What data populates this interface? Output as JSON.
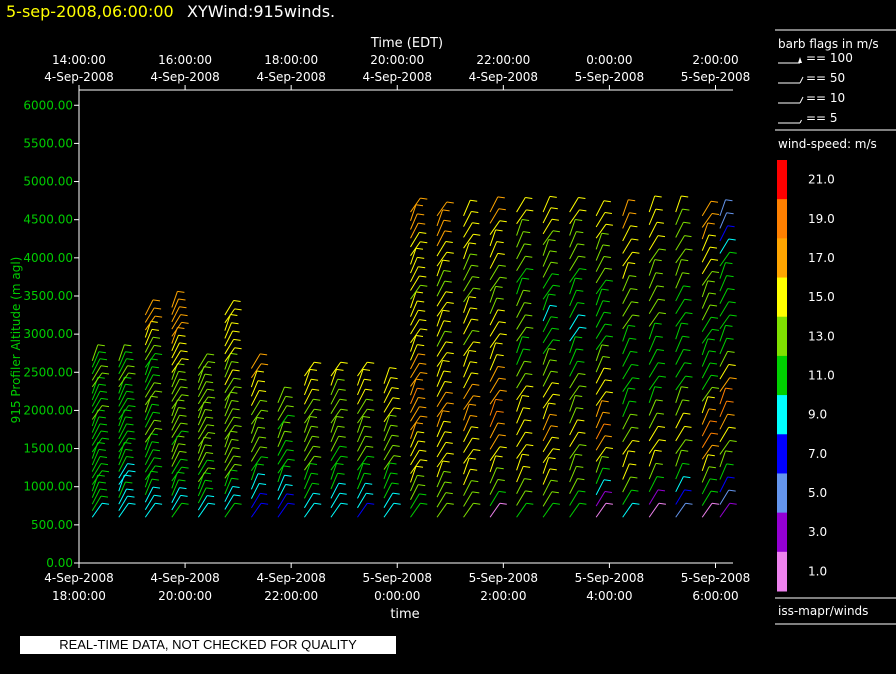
{
  "header": {
    "datetime": "5-sep-2008,06:00:00",
    "product": "XYWind:915winds."
  },
  "top_axis": {
    "label": "Time (EDT)",
    "ticks": [
      {
        "time": "14:00:00",
        "date": "4-Sep-2008"
      },
      {
        "time": "16:00:00",
        "date": "4-Sep-2008"
      },
      {
        "time": "18:00:00",
        "date": "4-Sep-2008"
      },
      {
        "time": "20:00:00",
        "date": "4-Sep-2008"
      },
      {
        "time": "22:00:00",
        "date": "4-Sep-2008"
      },
      {
        "time": "0:00:00",
        "date": "5-Sep-2008"
      },
      {
        "time": "2:00:00",
        "date": "5-Sep-2008"
      }
    ]
  },
  "barb_legend": {
    "title": "barb flags in m/s",
    "items": [
      "== 100",
      "== 50",
      "== 10",
      "== 5"
    ]
  },
  "colorbar": {
    "title": "wind-speed: m/s",
    "levels": [
      {
        "label": "21.0",
        "color": "#ff0000"
      },
      {
        "label": "19.0",
        "color": "#ff8000"
      },
      {
        "label": "17.0",
        "color": "#ffa500"
      },
      {
        "label": "15.0",
        "color": "#ffff00"
      },
      {
        "label": "13.0",
        "color": "#80e000"
      },
      {
        "label": "11.0",
        "color": "#00d000"
      },
      {
        "label": "9.0",
        "color": "#00ffff"
      },
      {
        "label": "7.0",
        "color": "#0000ff"
      },
      {
        "label": "5.0",
        "color": "#6495ed"
      },
      {
        "label": "3.0",
        "color": "#9400d3"
      },
      {
        "label": "1.0",
        "color": "#ee82ee"
      }
    ],
    "source": "iss-mapr/winds"
  },
  "footer_note": "REAL-TIME DATA, NOT CHECKED FOR QUALITY",
  "chart_data": {
    "type": "scatter",
    "mark": "wind-barb",
    "ylabel": "915 Profiler Altitude (m agl)",
    "xlabel": "time",
    "ylim": [
      0,
      6200
    ],
    "yticks": [
      "0.00",
      "500.00",
      "1000.00",
      "1500.00",
      "2000.00",
      "2500.00",
      "3000.00",
      "3500.00",
      "4000.00",
      "4500.00",
      "5000.00",
      "5500.00",
      "6000.00"
    ],
    "xlim_hours_utc": [
      "4-Sep-2008 18:00",
      "5-Sep-2008 06:10"
    ],
    "xticks": [
      {
        "date": "4-Sep-2008",
        "time": "18:00:00"
      },
      {
        "date": "4-Sep-2008",
        "time": "20:00:00"
      },
      {
        "date": "4-Sep-2008",
        "time": "22:00:00"
      },
      {
        "date": "5-Sep-2008",
        "time": "0:00:00"
      },
      {
        "date": "5-Sep-2008",
        "time": "2:00:00"
      },
      {
        "date": "5-Sep-2008",
        "time": "4:00:00"
      },
      {
        "date": "5-Sep-2008",
        "time": "6:00:00"
      }
    ],
    "profiles": [
      {
        "time": "18:15",
        "top": 2650,
        "speeds": [
          10,
          11,
          11,
          12,
          11,
          12,
          12,
          12,
          11,
          11,
          11,
          12,
          12,
          12,
          12,
          13,
          12,
          12,
          11,
          12,
          13,
          13,
          12,
          12,
          13
        ]
      },
      {
        "time": "18:45",
        "top": 2650,
        "speeds": [
          9,
          9,
          10,
          11,
          9,
          9,
          10,
          11,
          11,
          11,
          12,
          12,
          11,
          12,
          12,
          12,
          12,
          12,
          11,
          12,
          13,
          13,
          12,
          12,
          13
        ]
      },
      {
        "time": "19:15",
        "top": 3250,
        "speeds": [
          10,
          9,
          10,
          11,
          11,
          12,
          12,
          11,
          12,
          12,
          13,
          13,
          12,
          12,
          13,
          13,
          13,
          12,
          12,
          12,
          12,
          13,
          14,
          15,
          15,
          17,
          17,
          18
        ]
      },
      {
        "time": "19:45",
        "top": 3350,
        "speeds": [
          11,
          9,
          10,
          11,
          11,
          12,
          12,
          13,
          13,
          13,
          12,
          13,
          13,
          14,
          14,
          14,
          13,
          13,
          13,
          14,
          15,
          15,
          16,
          16,
          17,
          17,
          17,
          17,
          17,
          17
        ]
      },
      {
        "time": "20:15",
        "top": 2550,
        "speeds": [
          9,
          9,
          11,
          11,
          12,
          13,
          12,
          13,
          13,
          14,
          13,
          14,
          14,
          14,
          13,
          13,
          13,
          14,
          13,
          14,
          14,
          14
        ]
      },
      {
        "time": "20:45",
        "top": 3250,
        "speeds": [
          11,
          9,
          10,
          11,
          12,
          13,
          13,
          13,
          13,
          14,
          14,
          14,
          14,
          14,
          14,
          14,
          14,
          15,
          14,
          14,
          15,
          15,
          15,
          15,
          16,
          16,
          16
        ]
      },
      {
        "time": "21:15",
        "top": 2550,
        "speeds": [
          8,
          7,
          9,
          10,
          11,
          11,
          13,
          13,
          13,
          14,
          14,
          14,
          15,
          15,
          15,
          17,
          17
        ]
      },
      {
        "time": "21:45",
        "top": 2100,
        "speeds": [
          8,
          8,
          9,
          10,
          11,
          12,
          12,
          12,
          13,
          13,
          12,
          13,
          14,
          14
        ]
      },
      {
        "time": "22:15",
        "top": 2450,
        "speeds": [
          9,
          9,
          11,
          11,
          12,
          13,
          13,
          13,
          14,
          14,
          14,
          14,
          15,
          15,
          15,
          15
        ]
      },
      {
        "time": "22:45",
        "top": 2450,
        "speeds": [
          9,
          9,
          10,
          11,
          11,
          12,
          12,
          13,
          13,
          14,
          14,
          14,
          14,
          14,
          15,
          15
        ]
      },
      {
        "time": "23:15",
        "top": 2450,
        "speeds": [
          8,
          9,
          10,
          11,
          12,
          12,
          13,
          13,
          14,
          14,
          14,
          14,
          15,
          15,
          15,
          15
        ]
      },
      {
        "time": "23:45",
        "top": 2350,
        "speeds": [
          9,
          9,
          11,
          11,
          12,
          13,
          13,
          13,
          14,
          14,
          15,
          15,
          15,
          16,
          15
        ]
      },
      {
        "time": "0:15",
        "top": 4600,
        "speeds": [
          12,
          12,
          13,
          14,
          15,
          15,
          15,
          16,
          16,
          17,
          17,
          18,
          18,
          19,
          18,
          18,
          17,
          17,
          16,
          16,
          15,
          15,
          15,
          15,
          15,
          14,
          15,
          15,
          15,
          15,
          16,
          16,
          17,
          17,
          17,
          17
        ]
      },
      {
        "time": "0:45",
        "top": 4550,
        "speeds": [
          13,
          13,
          13,
          14,
          15,
          15,
          16,
          16,
          16,
          17,
          17,
          17,
          16,
          16,
          15,
          15,
          15,
          14,
          15,
          15,
          15,
          15,
          14,
          14,
          15,
          16,
          16,
          17,
          17,
          17,
          17
        ]
      },
      {
        "time": "1:15",
        "top": 4550,
        "speeds": [
          13,
          14,
          14,
          15,
          15,
          15,
          16,
          16,
          17,
          17,
          17,
          17,
          16,
          16,
          15,
          15,
          14,
          15,
          15,
          15,
          14,
          14,
          14,
          14,
          15,
          15,
          16,
          16,
          16
        ]
      },
      {
        "time": "1:45",
        "top": 4600,
        "speeds": [
          2,
          11,
          13,
          14,
          15,
          16,
          17,
          18,
          19,
          19,
          18,
          18,
          17,
          16,
          16,
          15,
          15,
          15,
          14,
          13,
          13,
          14,
          15,
          15,
          16,
          16,
          17,
          17
        ]
      },
      {
        "time": "2:15",
        "top": 4600,
        "speeds": [
          12,
          13,
          14,
          15,
          15,
          16,
          16,
          16,
          15,
          15,
          15,
          14,
          13,
          12,
          12,
          13,
          13,
          13,
          13,
          12,
          12,
          13,
          13,
          14,
          14,
          15,
          15
        ]
      },
      {
        "time": "2:45",
        "top": 4600,
        "speeds": [
          12,
          13,
          14,
          15,
          15,
          16,
          16,
          17,
          17,
          16,
          16,
          15,
          14,
          13,
          13,
          12,
          12,
          11,
          10,
          11,
          12,
          12,
          13,
          13,
          14,
          14,
          15,
          15,
          15
        ]
      },
      {
        "time": "3:15",
        "top": 4600,
        "speeds": [
          11,
          12,
          13,
          13,
          14,
          14,
          15,
          15,
          14,
          14,
          13,
          13,
          12,
          12,
          11,
          10,
          10,
          11,
          11,
          12,
          12,
          13,
          13,
          14,
          14,
          15,
          15
        ]
      },
      {
        "time": "3:45",
        "top": 4550,
        "speeds": [
          1,
          3,
          9,
          11,
          13,
          15,
          17,
          19,
          18,
          17,
          16,
          15,
          15,
          14,
          13,
          12,
          11,
          11,
          11,
          12,
          12,
          13,
          13,
          14,
          14,
          15,
          15,
          16
        ]
      },
      {
        "time": "4:15",
        "top": 4550,
        "speeds": [
          9,
          11,
          13,
          15,
          16,
          15,
          14,
          13,
          12,
          12,
          11,
          11,
          11,
          12,
          12,
          13,
          13,
          14,
          14,
          15,
          15,
          16,
          16,
          17,
          17
        ]
      },
      {
        "time": "4:45",
        "top": 4600,
        "speeds": [
          1,
          3,
          11,
          13,
          15,
          16,
          15,
          14,
          13,
          12,
          12,
          11,
          11,
          11,
          12,
          13,
          13,
          13,
          14,
          14,
          14,
          15,
          15,
          16,
          16
        ]
      },
      {
        "time": "5:15",
        "top": 4600,
        "speeds": [
          5,
          7,
          9,
          11,
          13,
          14,
          15,
          15,
          14,
          13,
          12,
          12,
          11,
          11,
          11,
          12,
          12,
          12,
          13,
          13,
          13,
          14,
          14,
          14,
          15
        ]
      },
      {
        "time": "5:45",
        "top": 4550,
        "speeds": [
          2,
          11,
          12,
          13,
          15,
          17,
          19,
          19,
          17,
          15,
          13,
          12,
          11,
          11,
          12,
          12,
          12,
          13,
          13,
          14,
          14,
          15,
          15,
          16,
          17,
          17,
          18
        ]
      },
      {
        "time": "6:05",
        "top": 4550,
        "speeds": [
          3,
          5,
          7,
          11,
          13,
          14,
          15,
          17,
          19,
          19,
          17,
          15,
          13,
          12,
          11,
          11,
          11,
          12,
          12,
          12,
          11,
          9,
          7,
          6,
          5
        ]
      }
    ]
  }
}
